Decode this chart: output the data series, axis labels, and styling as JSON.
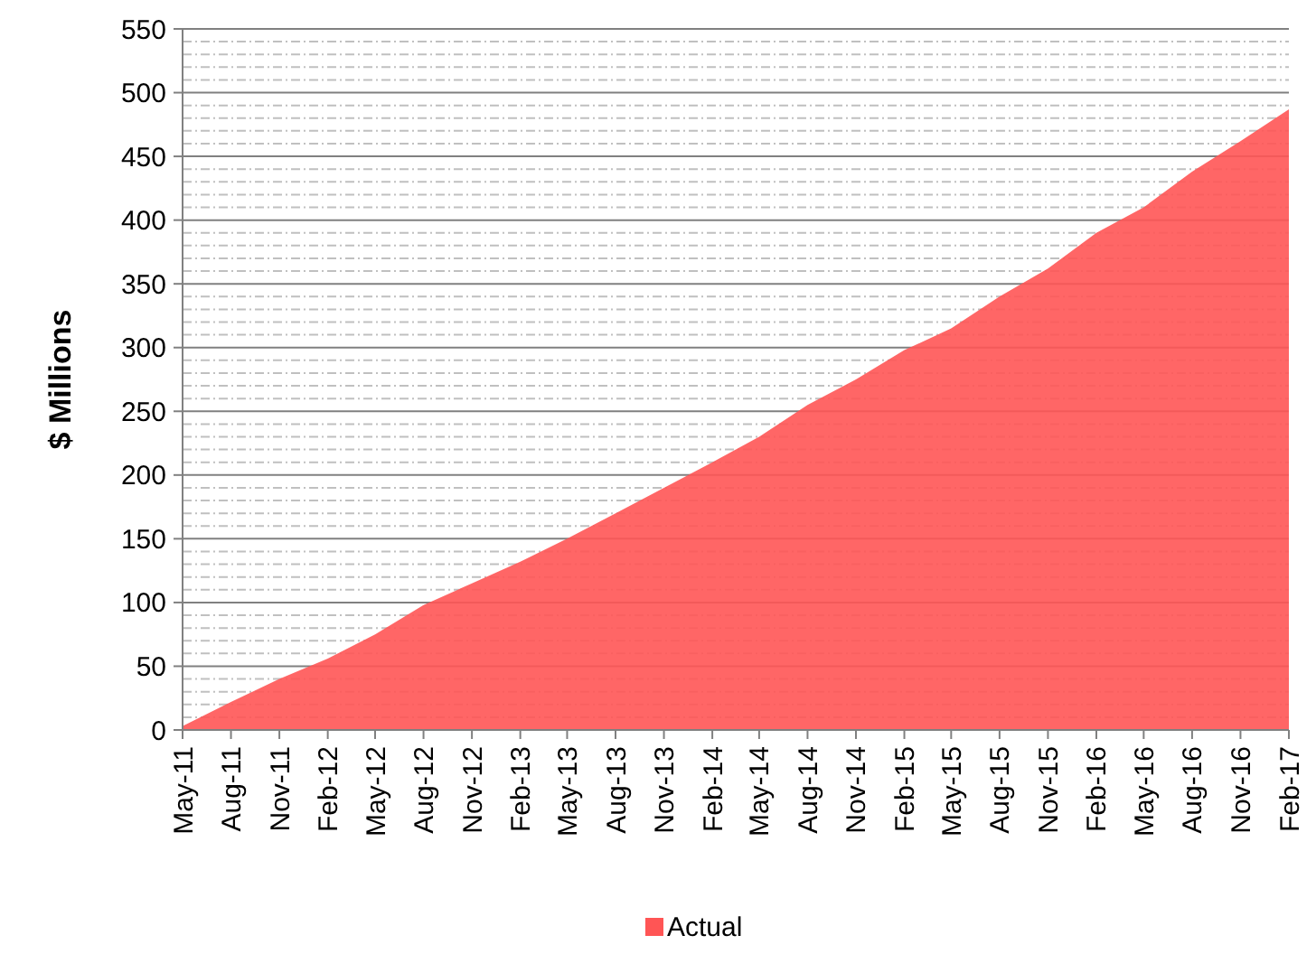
{
  "chart_data": {
    "type": "area",
    "ylabel": "$ Millions",
    "x": [
      "2011-05",
      "2011-08",
      "2011-11",
      "2012-02",
      "2012-05",
      "2012-08",
      "2012-11",
      "2013-02",
      "2013-05",
      "2013-08",
      "2013-11",
      "2014-02",
      "2014-05",
      "2014-08",
      "2014-11",
      "2015-02",
      "2015-05",
      "2015-08",
      "2015-11",
      "2016-02",
      "2016-05",
      "2016-08",
      "2016-11",
      "2017-02"
    ],
    "series": [
      {
        "name": "Actual",
        "color": "#ff5555",
        "values": [
          3,
          22,
          40,
          56,
          75,
          98,
          115,
          132,
          150,
          170,
          190,
          210,
          230,
          255,
          275,
          298,
          315,
          340,
          362,
          390,
          410,
          438,
          462,
          487
        ]
      }
    ],
    "xlim": [
      "2011-05",
      "2017-02"
    ],
    "xticks": [
      {
        "value": "2011-05",
        "label": "May-11"
      },
      {
        "value": "2011-08",
        "label": "Aug-11"
      },
      {
        "value": "2011-11",
        "label": "Nov-11"
      },
      {
        "value": "2012-02",
        "label": "Feb-12"
      },
      {
        "value": "2012-05",
        "label": "May-12"
      },
      {
        "value": "2012-08",
        "label": "Aug-12"
      },
      {
        "value": "2012-11",
        "label": "Nov-12"
      },
      {
        "value": "2013-02",
        "label": "Feb-13"
      },
      {
        "value": "2013-05",
        "label": "May-13"
      },
      {
        "value": "2013-08",
        "label": "Aug-13"
      },
      {
        "value": "2013-11",
        "label": "Nov-13"
      },
      {
        "value": "2014-02",
        "label": "Feb-14"
      },
      {
        "value": "2014-05",
        "label": "May-14"
      },
      {
        "value": "2014-08",
        "label": "Aug-14"
      },
      {
        "value": "2014-11",
        "label": "Nov-14"
      },
      {
        "value": "2015-02",
        "label": "Feb-15"
      },
      {
        "value": "2015-05",
        "label": "May-15"
      },
      {
        "value": "2015-08",
        "label": "Aug-15"
      },
      {
        "value": "2015-11",
        "label": "Nov-15"
      },
      {
        "value": "2016-02",
        "label": "Feb-16"
      },
      {
        "value": "2016-05",
        "label": "May-16"
      },
      {
        "value": "2016-08",
        "label": "Aug-16"
      },
      {
        "value": "2016-11",
        "label": "Nov-16"
      },
      {
        "value": "2017-02",
        "label": "Feb-17"
      }
    ],
    "ylim": [
      0,
      550
    ],
    "yticks": [
      0,
      50,
      100,
      150,
      200,
      250,
      300,
      350,
      400,
      450,
      500,
      550
    ],
    "grid": "y",
    "legend": "bottom"
  }
}
